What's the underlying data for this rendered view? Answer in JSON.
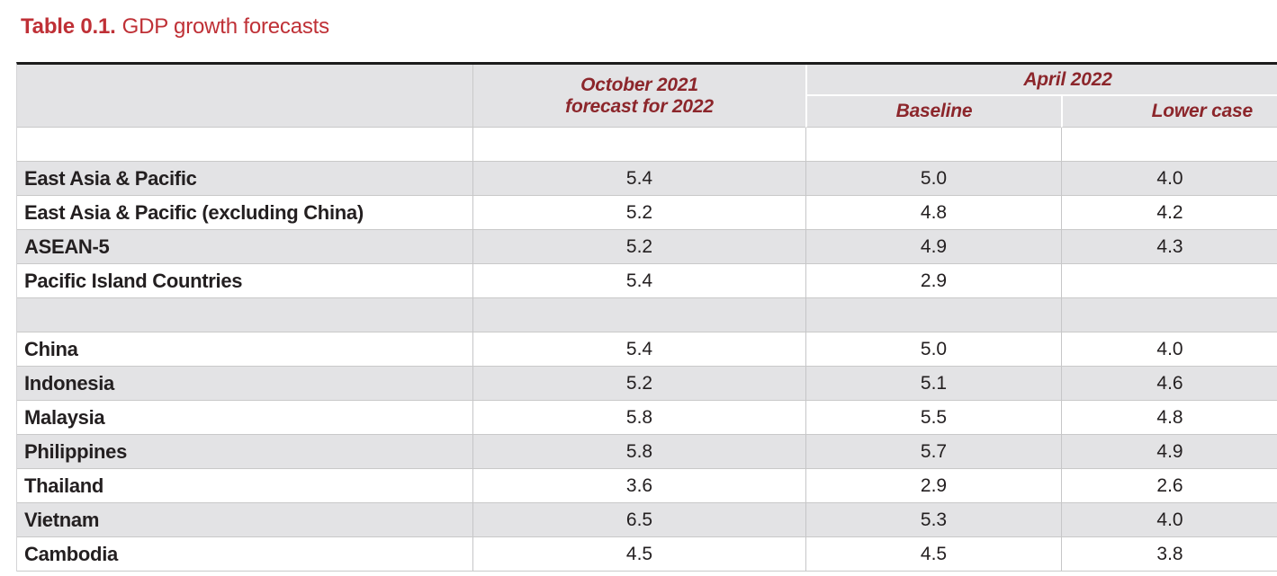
{
  "title": {
    "label": "Table 0.1.",
    "text": "GDP growth forecasts"
  },
  "header": {
    "october_line1": "October 2021",
    "october_line2": "forecast for 2022",
    "april": "April 2022",
    "baseline": "Baseline",
    "lower_case": "Lower case"
  },
  "colors": {
    "title_red": "#bf3036",
    "header_maroon": "#8c262b",
    "row_gray": "#e3e3e5",
    "rule_black": "#1c1c1c",
    "gridline_gray": "#c9c9c9",
    "body_text": "#231f20"
  },
  "table": {
    "rows": [
      {
        "label": "",
        "oct2021": "",
        "baseline": "",
        "lower_case": ""
      },
      {
        "label": "East Asia & Pacific",
        "oct2021": "5.4",
        "baseline": "5.0",
        "lower_case": "4.0"
      },
      {
        "label": "East Asia & Pacific (excluding China)",
        "oct2021": "5.2",
        "baseline": "4.8",
        "lower_case": "4.2"
      },
      {
        "label": "ASEAN-5",
        "oct2021": "5.2",
        "baseline": "4.9",
        "lower_case": "4.3"
      },
      {
        "label": "Pacific Island Countries",
        "oct2021": "5.4",
        "baseline": "2.9",
        "lower_case": ""
      },
      {
        "label": "",
        "oct2021": "",
        "baseline": "",
        "lower_case": ""
      },
      {
        "label": "China",
        "oct2021": "5.4",
        "baseline": "5.0",
        "lower_case": "4.0"
      },
      {
        "label": "Indonesia",
        "oct2021": "5.2",
        "baseline": "5.1",
        "lower_case": "4.6"
      },
      {
        "label": "Malaysia",
        "oct2021": "5.8",
        "baseline": "5.5",
        "lower_case": "4.8"
      },
      {
        "label": "Philippines",
        "oct2021": "5.8",
        "baseline": "5.7",
        "lower_case": "4.9"
      },
      {
        "label": "Thailand",
        "oct2021": "3.6",
        "baseline": "2.9",
        "lower_case": "2.6"
      },
      {
        "label": "Vietnam",
        "oct2021": "6.5",
        "baseline": "5.3",
        "lower_case": "4.0"
      },
      {
        "label": "Cambodia",
        "oct2021": "4.5",
        "baseline": "4.5",
        "lower_case": "3.8"
      }
    ]
  }
}
